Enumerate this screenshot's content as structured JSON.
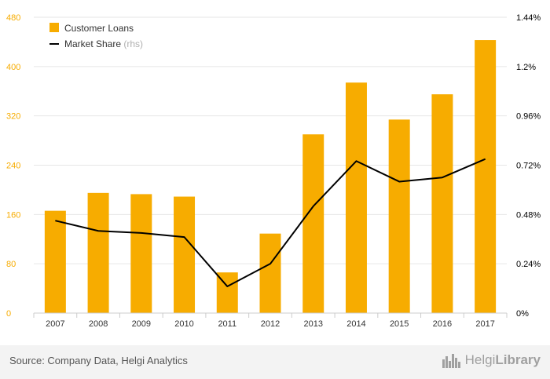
{
  "chart_data": {
    "type": "bar",
    "categories": [
      "2007",
      "2008",
      "2009",
      "2010",
      "2011",
      "2012",
      "2013",
      "2014",
      "2015",
      "2016",
      "2017"
    ],
    "series": [
      {
        "name": "Customer Loans",
        "type": "bar",
        "axis": "left",
        "color": "#f7ac00",
        "values": [
          166,
          195,
          193,
          189,
          66,
          129,
          290,
          374,
          314,
          355,
          443
        ]
      },
      {
        "name": "Market Share",
        "name_suffix": "(rhs)",
        "type": "line",
        "axis": "right",
        "color": "#000000",
        "values": [
          0.45,
          0.4,
          0.39,
          0.37,
          0.13,
          0.24,
          0.52,
          0.74,
          0.64,
          0.66,
          0.75
        ]
      }
    ],
    "y_left": {
      "min": 0,
      "max": 480,
      "ticks": [
        0,
        80,
        160,
        240,
        320,
        400,
        480
      ],
      "color": "#f7ac00"
    },
    "y_right": {
      "min": 0,
      "max": 1.44,
      "ticks": [
        "0%",
        "0.24%",
        "0.48%",
        "0.72%",
        "0.96%",
        "1.2%",
        "1.44%"
      ],
      "color": "#000000"
    },
    "grid": true,
    "legend": "top-left",
    "title": "",
    "xlabel": "",
    "ylabel": ""
  },
  "footer": {
    "source": "Source: Company Data, Helgi Analytics",
    "logo_light": "Helgi",
    "logo_bold": "Library"
  }
}
